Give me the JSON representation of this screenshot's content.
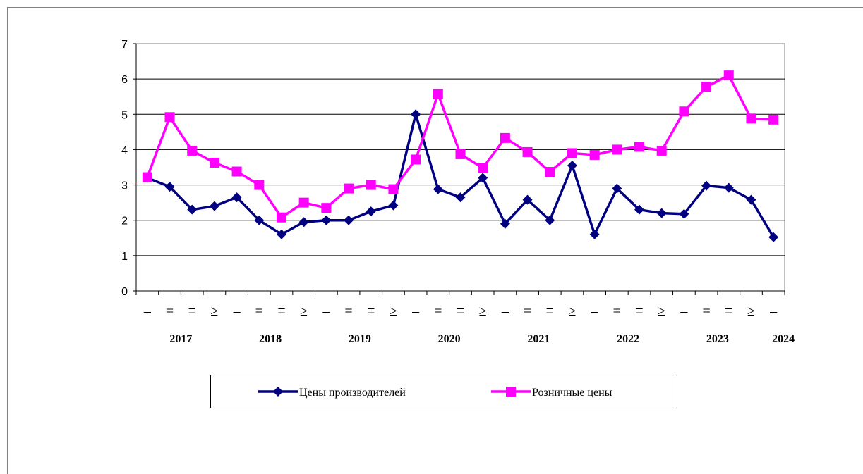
{
  "chart_data": {
    "type": "line",
    "categories": [
      "–",
      "=",
      "≡",
      "≥",
      "–",
      "=",
      "≡",
      "≥",
      "–",
      "=",
      "≡",
      "≥",
      "–",
      "=",
      "≡",
      "≥",
      "–",
      "=",
      "≡",
      "≥",
      "–",
      "=",
      "≡",
      "≥",
      "–",
      "=",
      "≡",
      "≥",
      "–"
    ],
    "year_labels": [
      "2017",
      "2018",
      "2019",
      "2020",
      "2021",
      "2022",
      "2023",
      "2024"
    ],
    "series": [
      {
        "name": "Цены производителей",
        "color": "#000080",
        "marker": "diamond",
        "values": [
          3.2,
          2.95,
          2.3,
          2.4,
          2.65,
          2.0,
          1.6,
          1.95,
          2.0,
          2.0,
          2.25,
          2.42,
          5.0,
          2.88,
          2.65,
          3.2,
          1.9,
          2.58,
          2.0,
          3.55,
          1.6,
          2.9,
          2.3,
          2.2,
          2.18,
          2.98,
          2.92,
          2.58,
          1.52
        ]
      },
      {
        "name": "Розничные цены",
        "color": "#ff00ff",
        "marker": "square",
        "values": [
          3.22,
          4.92,
          3.97,
          3.63,
          3.38,
          3.0,
          2.08,
          2.5,
          2.35,
          2.9,
          3.0,
          2.88,
          3.72,
          5.57,
          3.87,
          3.48,
          4.33,
          3.93,
          3.37,
          3.9,
          3.85,
          4.0,
          4.08,
          3.97,
          5.08,
          5.78,
          6.1,
          4.88,
          4.85
        ]
      }
    ],
    "ylim": [
      0,
      7
    ],
    "yticks": [
      0,
      1,
      2,
      3,
      4,
      5,
      6,
      7
    ],
    "grid": true
  }
}
